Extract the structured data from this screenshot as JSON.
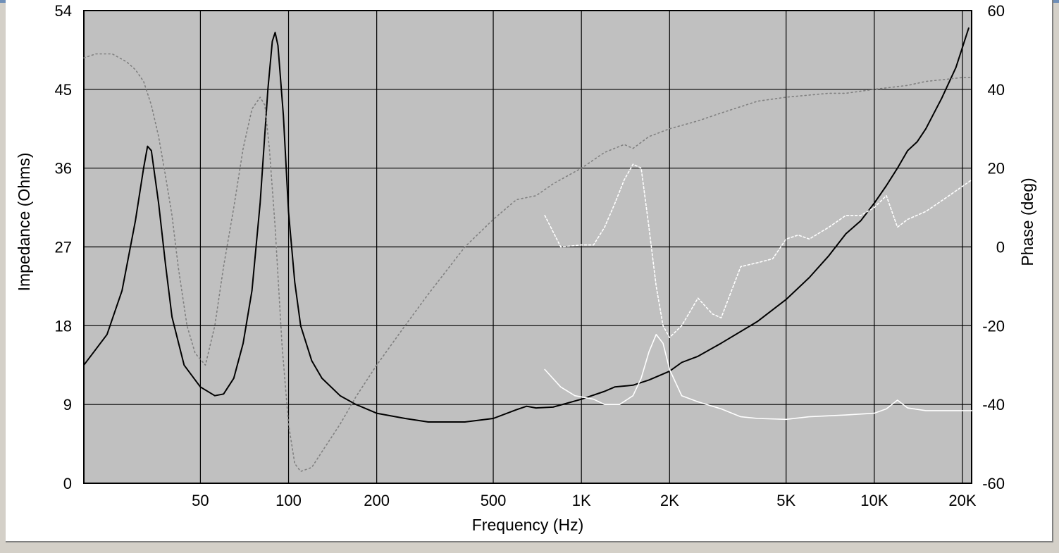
{
  "chart_data": {
    "type": "line",
    "title": "",
    "xlabel": "Frequency (Hz)",
    "ylabel": "Impedance (Ohms)",
    "y2label": "Phase (deg)",
    "x_scale": "log",
    "xlim": [
      20,
      21500
    ],
    "ylim": [
      0,
      54
    ],
    "y2lim": [
      -60,
      60
    ],
    "grid": true,
    "x_ticks": [
      {
        "value": 50,
        "label": "50"
      },
      {
        "value": 100,
        "label": "100"
      },
      {
        "value": 200,
        "label": "200"
      },
      {
        "value": 500,
        "label": "500"
      },
      {
        "value": 1000,
        "label": "1K"
      },
      {
        "value": 2000,
        "label": "2K"
      },
      {
        "value": 5000,
        "label": "5K"
      },
      {
        "value": 10000,
        "label": "10K"
      },
      {
        "value": 20000,
        "label": "20K"
      }
    ],
    "y_ticks": [
      {
        "value": 0,
        "label": "0"
      },
      {
        "value": 9,
        "label": "9"
      },
      {
        "value": 18,
        "label": "18"
      },
      {
        "value": 27,
        "label": "27"
      },
      {
        "value": 36,
        "label": "36"
      },
      {
        "value": 45,
        "label": "45"
      },
      {
        "value": 54,
        "label": "54"
      }
    ],
    "y2_ticks": [
      {
        "value": -60,
        "label": "-60"
      },
      {
        "value": -40,
        "label": "-40"
      },
      {
        "value": -20,
        "label": "-20"
      },
      {
        "value": 0,
        "label": "0"
      },
      {
        "value": 20,
        "label": "20"
      },
      {
        "value": 40,
        "label": "40"
      },
      {
        "value": 60,
        "label": "60"
      }
    ],
    "series": [
      {
        "axis": "left",
        "color": "#000000",
        "dash": "solid",
        "points": [
          [
            20,
            13.5
          ],
          [
            24,
            17
          ],
          [
            27,
            22
          ],
          [
            30,
            30
          ],
          [
            32,
            36
          ],
          [
            33,
            38.5
          ],
          [
            34,
            38
          ],
          [
            36,
            32
          ],
          [
            38,
            25
          ],
          [
            40,
            19
          ],
          [
            44,
            13.5
          ],
          [
            50,
            11
          ],
          [
            56,
            10
          ],
          [
            60,
            10.2
          ],
          [
            65,
            12
          ],
          [
            70,
            16
          ],
          [
            75,
            22
          ],
          [
            80,
            32
          ],
          [
            85,
            45
          ],
          [
            88,
            50.5
          ],
          [
            90,
            51.5
          ],
          [
            92,
            50
          ],
          [
            96,
            42
          ],
          [
            100,
            31
          ],
          [
            105,
            23
          ],
          [
            110,
            18
          ],
          [
            120,
            14
          ],
          [
            130,
            12
          ],
          [
            150,
            10
          ],
          [
            170,
            9
          ],
          [
            200,
            8
          ],
          [
            250,
            7.4
          ],
          [
            300,
            7
          ],
          [
            400,
            7
          ],
          [
            500,
            7.4
          ],
          [
            600,
            8.4
          ],
          [
            650,
            8.8
          ],
          [
            700,
            8.6
          ],
          [
            800,
            8.7
          ],
          [
            1000,
            9.6
          ],
          [
            1200,
            10.5
          ],
          [
            1300,
            11
          ],
          [
            1500,
            11.2
          ],
          [
            1700,
            11.8
          ],
          [
            2000,
            12.8
          ],
          [
            2200,
            13.8
          ],
          [
            2500,
            14.5
          ],
          [
            3000,
            16
          ],
          [
            4000,
            18.5
          ],
          [
            5000,
            21
          ],
          [
            6000,
            23.5
          ],
          [
            7000,
            26
          ],
          [
            8000,
            28.5
          ],
          [
            9000,
            30
          ],
          [
            10000,
            32
          ],
          [
            11000,
            34
          ],
          [
            12000,
            36
          ],
          [
            13000,
            38
          ],
          [
            14000,
            39
          ],
          [
            15000,
            40.5
          ],
          [
            17000,
            44
          ],
          [
            19000,
            47.5
          ],
          [
            21000,
            52
          ]
        ]
      },
      {
        "axis": "right",
        "color": "#808080",
        "dash": "dotted",
        "points": [
          [
            20,
            48
          ],
          [
            22,
            49
          ],
          [
            25,
            49
          ],
          [
            28,
            47
          ],
          [
            30,
            45
          ],
          [
            32,
            42
          ],
          [
            34,
            36
          ],
          [
            36,
            28
          ],
          [
            38,
            18
          ],
          [
            40,
            8
          ],
          [
            42,
            -5
          ],
          [
            45,
            -20
          ],
          [
            48,
            -27
          ],
          [
            52,
            -30
          ],
          [
            56,
            -20
          ],
          [
            60,
            -5
          ],
          [
            65,
            10
          ],
          [
            70,
            25
          ],
          [
            75,
            35
          ],
          [
            80,
            38
          ],
          [
            83,
            36
          ],
          [
            86,
            25
          ],
          [
            90,
            5
          ],
          [
            95,
            -25
          ],
          [
            100,
            -45
          ],
          [
            105,
            -55
          ],
          [
            110,
            -57
          ],
          [
            120,
            -56
          ],
          [
            130,
            -52
          ],
          [
            150,
            -45
          ],
          [
            170,
            -38
          ],
          [
            200,
            -30
          ],
          [
            250,
            -20
          ],
          [
            300,
            -12
          ],
          [
            400,
            0
          ],
          [
            500,
            7
          ],
          [
            600,
            12
          ],
          [
            700,
            13
          ],
          [
            800,
            16
          ],
          [
            1000,
            20
          ],
          [
            1200,
            24
          ],
          [
            1400,
            26
          ],
          [
            1500,
            25
          ],
          [
            1700,
            28
          ],
          [
            2000,
            30
          ],
          [
            2500,
            32
          ],
          [
            3000,
            34
          ],
          [
            4000,
            37
          ],
          [
            5000,
            38
          ],
          [
            7000,
            39
          ],
          [
            8000,
            39
          ],
          [
            10000,
            40
          ],
          [
            13000,
            41
          ],
          [
            15000,
            42
          ],
          [
            20000,
            43
          ],
          [
            21500,
            43
          ]
        ]
      },
      {
        "axis": "right",
        "color": "#ffffff",
        "dash": "dashed",
        "points": [
          [
            750,
            8
          ],
          [
            850,
            0
          ],
          [
            1000,
            0.5
          ],
          [
            1100,
            0.5
          ],
          [
            1200,
            5
          ],
          [
            1300,
            11
          ],
          [
            1400,
            17
          ],
          [
            1500,
            21
          ],
          [
            1600,
            20
          ],
          [
            1700,
            5
          ],
          [
            1800,
            -10
          ],
          [
            1900,
            -20
          ],
          [
            2000,
            -23
          ],
          [
            2200,
            -20
          ],
          [
            2500,
            -13
          ],
          [
            2800,
            -17
          ],
          [
            3000,
            -18
          ],
          [
            3500,
            -5
          ],
          [
            4000,
            -4
          ],
          [
            4500,
            -3
          ],
          [
            5000,
            2
          ],
          [
            5500,
            3
          ],
          [
            6000,
            2
          ],
          [
            7000,
            5
          ],
          [
            8000,
            8
          ],
          [
            9000,
            8
          ],
          [
            10000,
            10
          ],
          [
            11000,
            13
          ],
          [
            12000,
            5
          ],
          [
            13000,
            7
          ],
          [
            15000,
            9
          ],
          [
            18000,
            13
          ],
          [
            21500,
            17
          ]
        ]
      },
      {
        "axis": "left",
        "color": "#ffffff",
        "dash": "solid",
        "points": [
          [
            750,
            13
          ],
          [
            850,
            11
          ],
          [
            950,
            10
          ],
          [
            1100,
            9.6
          ],
          [
            1200,
            9
          ],
          [
            1350,
            9
          ],
          [
            1500,
            10
          ],
          [
            1600,
            12
          ],
          [
            1700,
            15
          ],
          [
            1800,
            17
          ],
          [
            1900,
            16
          ],
          [
            2000,
            13
          ],
          [
            2200,
            10
          ],
          [
            2500,
            9.3
          ],
          [
            3000,
            8.5
          ],
          [
            3500,
            7.6
          ],
          [
            4000,
            7.4
          ],
          [
            5000,
            7.3
          ],
          [
            6000,
            7.6
          ],
          [
            8000,
            7.8
          ],
          [
            10000,
            8
          ],
          [
            11000,
            8.5
          ],
          [
            12000,
            9.5
          ],
          [
            13000,
            8.6
          ],
          [
            15000,
            8.3
          ],
          [
            18000,
            8.3
          ],
          [
            21500,
            8.3
          ]
        ]
      }
    ]
  }
}
